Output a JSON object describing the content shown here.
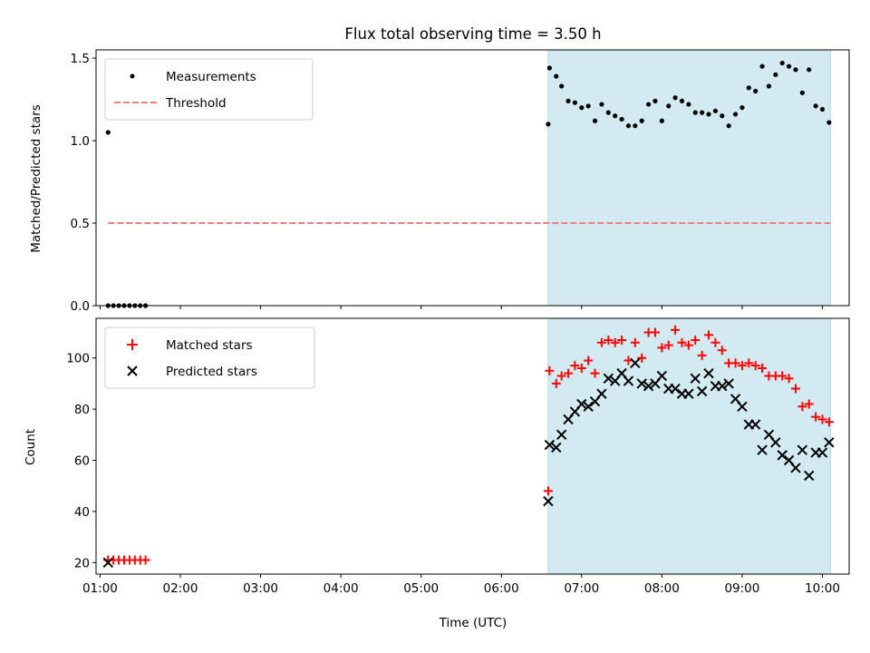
{
  "chart_data": [
    {
      "type": "scatter",
      "title": "Flux total observing time = 3.50 h",
      "ylabel": "Matched/Predicted stars",
      "xlabel": "",
      "ylim": [
        0.0,
        1.55
      ],
      "xlim": [
        "00:57",
        "10:20"
      ],
      "ytick_labels": [
        "0.0",
        "0.5",
        "1.0",
        "1.5"
      ],
      "ytick_values": [
        0.0,
        0.5,
        1.0,
        1.5
      ],
      "grid": false,
      "legend_position": "upper left",
      "highlight_span": {
        "x_start": "06:35",
        "x_end": "10:06",
        "color": "#add8e6"
      },
      "series": [
        {
          "name": "Measurements",
          "kind": "points",
          "color": "#000000",
          "x": [
            "01:06",
            "01:06",
            "01:10",
            "01:14",
            "01:18",
            "01:22",
            "01:26",
            "01:30",
            "01:34",
            "06:35",
            "06:36",
            "06:41",
            "06:45",
            "06:50",
            "06:55",
            "07:00",
            "07:05",
            "07:10",
            "07:15",
            "07:20",
            "07:25",
            "07:30",
            "07:35",
            "07:40",
            "07:45",
            "07:50",
            "07:55",
            "08:00",
            "08:05",
            "08:10",
            "08:15",
            "08:20",
            "08:25",
            "08:30",
            "08:35",
            "08:40",
            "08:45",
            "08:50",
            "08:55",
            "09:00",
            "09:05",
            "09:10",
            "09:15",
            "09:20",
            "09:25",
            "09:30",
            "09:35",
            "09:40",
            "09:45",
            "09:50",
            "09:55",
            "10:00",
            "10:05"
          ],
          "y": [
            1.05,
            0.0,
            0.0,
            0.0,
            0.0,
            0.0,
            0.0,
            0.0,
            0.0,
            1.1,
            1.44,
            1.39,
            1.33,
            1.24,
            1.23,
            1.2,
            1.21,
            1.12,
            1.22,
            1.17,
            1.15,
            1.13,
            1.09,
            1.09,
            1.12,
            1.22,
            1.24,
            1.12,
            1.21,
            1.26,
            1.24,
            1.22,
            1.17,
            1.17,
            1.16,
            1.18,
            1.15,
            1.09,
            1.16,
            1.2,
            1.32,
            1.3,
            1.45,
            1.33,
            1.4,
            1.47,
            1.45,
            1.43,
            1.29,
            1.43,
            1.21,
            1.19,
            1.11
          ]
        },
        {
          "name": "Threshold",
          "kind": "dashed-line",
          "color": "#f08080",
          "x": [
            "01:06",
            "10:06"
          ],
          "y": [
            0.5,
            0.5
          ]
        }
      ]
    },
    {
      "type": "scatter",
      "title": "",
      "ylabel": "Count",
      "xlabel": "Time (UTC)",
      "ylim": [
        15.5,
        115.5
      ],
      "xlim": [
        "00:57",
        "10:20"
      ],
      "ytick_labels": [
        "20",
        "40",
        "60",
        "80",
        "100"
      ],
      "ytick_values": [
        20,
        40,
        60,
        80,
        100
      ],
      "xtick_labels": [
        "01:00",
        "02:00",
        "03:00",
        "04:00",
        "05:00",
        "06:00",
        "07:00",
        "08:00",
        "09:00",
        "10:00"
      ],
      "xtick_values": [
        "01:00",
        "02:00",
        "03:00",
        "04:00",
        "05:00",
        "06:00",
        "07:00",
        "08:00",
        "09:00",
        "10:00"
      ],
      "grid": false,
      "legend_position": "upper left",
      "highlight_span": {
        "x_start": "06:35",
        "x_end": "10:06",
        "color": "#add8e6"
      },
      "series": [
        {
          "name": "Matched stars",
          "kind": "plus",
          "color": "#ff0000",
          "x": [
            "01:06",
            "01:10",
            "01:14",
            "01:18",
            "01:22",
            "01:26",
            "01:30",
            "01:34",
            "06:35",
            "06:36",
            "06:41",
            "06:45",
            "06:50",
            "06:55",
            "07:00",
            "07:05",
            "07:10",
            "07:15",
            "07:20",
            "07:25",
            "07:30",
            "07:35",
            "07:40",
            "07:45",
            "07:50",
            "07:55",
            "08:00",
            "08:05",
            "08:10",
            "08:15",
            "08:20",
            "08:25",
            "08:30",
            "08:35",
            "08:40",
            "08:45",
            "08:50",
            "08:55",
            "09:00",
            "09:05",
            "09:10",
            "09:15",
            "09:20",
            "09:25",
            "09:30",
            "09:35",
            "09:40",
            "09:45",
            "09:50",
            "09:55",
            "10:00",
            "10:05"
          ],
          "y": [
            21,
            21,
            21,
            21,
            21,
            21,
            21,
            21,
            48,
            95,
            90,
            93,
            94,
            97,
            96,
            99,
            94,
            106,
            107,
            106,
            107,
            99,
            106,
            100,
            110,
            110,
            104,
            105,
            111,
            106,
            105,
            107,
            101,
            109,
            106,
            103,
            98,
            98,
            97,
            98,
            97,
            96,
            93,
            93,
            93,
            92,
            88,
            81,
            82,
            77,
            76,
            75
          ]
        },
        {
          "name": "Predicted stars",
          "kind": "x",
          "color": "#000000",
          "x": [
            "01:06",
            "06:35",
            "06:36",
            "06:41",
            "06:45",
            "06:50",
            "06:55",
            "07:00",
            "07:05",
            "07:10",
            "07:15",
            "07:20",
            "07:25",
            "07:30",
            "07:35",
            "07:40",
            "07:45",
            "07:50",
            "07:55",
            "08:00",
            "08:05",
            "08:10",
            "08:15",
            "08:20",
            "08:25",
            "08:30",
            "08:35",
            "08:40",
            "08:45",
            "08:50",
            "08:55",
            "09:00",
            "09:05",
            "09:10",
            "09:15",
            "09:20",
            "09:25",
            "09:30",
            "09:35",
            "09:40",
            "09:45",
            "09:50",
            "09:55",
            "10:00",
            "10:05"
          ],
          "y": [
            20,
            44,
            66,
            65,
            70,
            76,
            79,
            82,
            81,
            83,
            86,
            92,
            91,
            94,
            91,
            98,
            90,
            89,
            90,
            93,
            88,
            88,
            86,
            86,
            92,
            87,
            94,
            89,
            89,
            90,
            84,
            81,
            74,
            74,
            64,
            70,
            67,
            62,
            60,
            57,
            64,
            54,
            63,
            63,
            67
          ]
        }
      ]
    }
  ]
}
